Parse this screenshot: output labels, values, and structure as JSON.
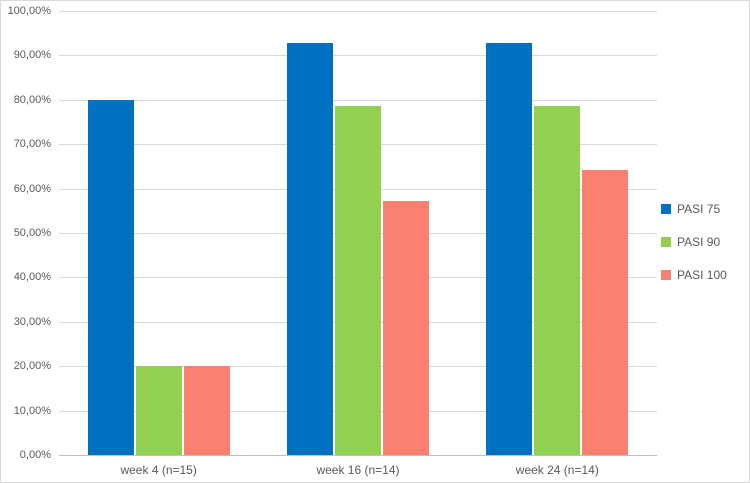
{
  "chart_data": {
    "type": "bar",
    "title": "",
    "xlabel": "",
    "ylabel": "",
    "categories": [
      "week 4 (n=15)",
      "week 16 (n=14)",
      "week 24 (n=14)"
    ],
    "series": [
      {
        "name": "PASI 75",
        "color": "#0070C0",
        "values": [
          80.0,
          92.9,
          92.9
        ]
      },
      {
        "name": "PASI 90",
        "color": "#92D050",
        "values": [
          20.0,
          78.6,
          78.6
        ]
      },
      {
        "name": "PASI 100",
        "color": "#FA8072",
        "values": [
          20.0,
          57.1,
          64.3
        ]
      }
    ],
    "ylim": [
      0,
      100
    ],
    "yticks": [
      {
        "value": 0,
        "label": "0,00%"
      },
      {
        "value": 10,
        "label": "10,00%"
      },
      {
        "value": 20,
        "label": "20,00%"
      },
      {
        "value": 30,
        "label": "30,00%"
      },
      {
        "value": 40,
        "label": "40,00%"
      },
      {
        "value": 50,
        "label": "50,00%"
      },
      {
        "value": 60,
        "label": "60,00%"
      },
      {
        "value": 70,
        "label": "70,00%"
      },
      {
        "value": 80,
        "label": "80,00%"
      },
      {
        "value": 90,
        "label": "90,00%"
      },
      {
        "value": 100,
        "label": "100,00%"
      }
    ],
    "grid": true,
    "legend_position": "right"
  },
  "colors": {
    "gridline": "#D9D9D9",
    "axis_line": "#BFBFBF",
    "axis_text": "#595959",
    "background": "#FFFFFF"
  }
}
